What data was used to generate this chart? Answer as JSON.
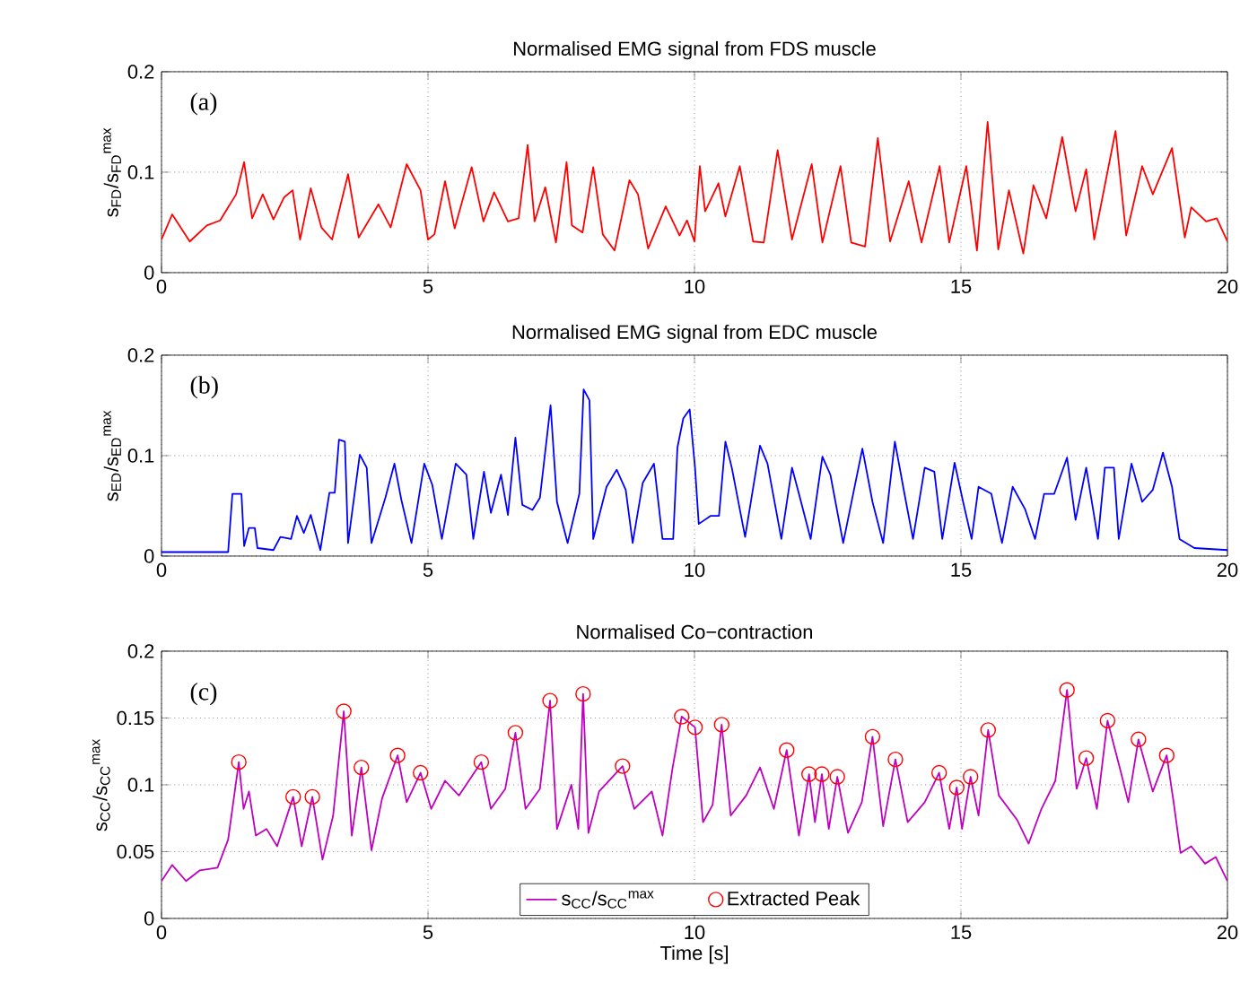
{
  "chart_data": [
    {
      "type": "line",
      "title": "Normalised EMG signal from FDS muscle",
      "ylabel": "s$_{FD}$/s$_{FD}$$^{max}$",
      "annotations": [
        "(a)"
      ],
      "x": [
        0,
        0.2,
        0.53,
        0.85,
        1.1,
        1.4,
        1.55,
        1.7,
        1.9,
        2.1,
        2.3,
        2.46,
        2.6,
        2.8,
        3.0,
        3.2,
        3.5,
        3.7,
        4.07,
        4.3,
        4.6,
        4.86,
        5.0,
        5.12,
        5.32,
        5.5,
        5.82,
        6.04,
        6.24,
        6.5,
        6.7,
        6.87,
        7.0,
        7.2,
        7.4,
        7.6,
        7.7,
        7.9,
        8.1,
        8.28,
        8.5,
        8.78,
        8.94,
        9.13,
        9.46,
        9.72,
        9.86,
        10.0,
        10.1,
        10.2,
        10.45,
        10.58,
        10.85,
        11.1,
        11.3,
        11.56,
        11.83,
        12.2,
        12.4,
        12.74,
        12.94,
        13.2,
        13.44,
        13.67,
        14.02,
        14.26,
        14.6,
        14.78,
        15.1,
        15.3,
        15.5,
        15.7,
        15.9,
        16.17,
        16.36,
        16.6,
        16.9,
        17.15,
        17.35,
        17.5,
        17.9,
        18.1,
        18.4,
        18.6,
        18.96,
        19.2,
        19.32,
        19.6,
        19.8,
        20
      ],
      "series": [
        {
          "color": "#ff0000",
          "values": [
            0.033,
            0.058,
            0.031,
            0.047,
            0.052,
            0.078,
            0.11,
            0.054,
            0.078,
            0.053,
            0.075,
            0.082,
            0.033,
            0.084,
            0.045,
            0.033,
            0.098,
            0.035,
            0.068,
            0.045,
            0.108,
            0.082,
            0.033,
            0.038,
            0.091,
            0.044,
            0.105,
            0.051,
            0.08,
            0.051,
            0.054,
            0.127,
            0.051,
            0.085,
            0.03,
            0.11,
            0.047,
            0.04,
            0.105,
            0.038,
            0.022,
            0.092,
            0.078,
            0.024,
            0.066,
            0.037,
            0.052,
            0.031,
            0.106,
            0.061,
            0.089,
            0.056,
            0.106,
            0.031,
            0.03,
            0.122,
            0.033,
            0.108,
            0.03,
            0.106,
            0.03,
            0.026,
            0.134,
            0.031,
            0.091,
            0.03,
            0.106,
            0.03,
            0.106,
            0.022,
            0.15,
            0.023,
            0.082,
            0.019,
            0.087,
            0.054,
            0.135,
            0.061,
            0.103,
            0.033,
            0.141,
            0.037,
            0.106,
            0.078,
            0.124,
            0.035,
            0.065,
            0.051,
            0.054,
            0.031
          ]
        }
      ],
      "xlim": [
        0,
        20
      ],
      "ylim": [
        0,
        0.2
      ],
      "xticks": [
        0,
        5,
        10,
        15,
        20
      ],
      "yticks": [
        0,
        0.1,
        0.2
      ],
      "grid": true
    },
    {
      "type": "line",
      "title": "Normalised EMG signal from EDC muscle",
      "ylabel": "s$_{ED}$/s$_{ED}$$^{max}$",
      "annotations": [
        "(b)"
      ],
      "x": [
        0,
        1.25,
        1.33,
        1.5,
        1.55,
        1.64,
        1.75,
        1.8,
        2.1,
        2.23,
        2.43,
        2.54,
        2.67,
        2.8,
        2.98,
        3.15,
        3.25,
        3.33,
        3.44,
        3.5,
        3.72,
        3.85,
        3.94,
        4.2,
        4.37,
        4.5,
        4.69,
        4.93,
        5.08,
        5.26,
        5.52,
        5.72,
        5.85,
        6.05,
        6.18,
        6.37,
        6.5,
        6.64,
        6.77,
        6.96,
        7.1,
        7.3,
        7.42,
        7.62,
        7.84,
        7.92,
        8.03,
        8.1,
        8.35,
        8.54,
        8.71,
        8.84,
        9.03,
        9.24,
        9.4,
        9.6,
        9.68,
        9.79,
        9.91,
        10.01,
        10.08,
        10.3,
        10.46,
        10.58,
        10.7,
        10.95,
        11.23,
        11.37,
        11.63,
        11.83,
        11.96,
        12.18,
        12.4,
        12.55,
        12.79,
        13.15,
        13.34,
        13.54,
        13.76,
        13.94,
        14.1,
        14.32,
        14.5,
        14.65,
        14.88,
        15.04,
        15.2,
        15.33,
        15.57,
        15.77,
        15.97,
        16.2,
        16.39,
        16.56,
        16.75,
        16.99,
        17.15,
        17.35,
        17.57,
        17.7,
        17.87,
        17.96,
        18.2,
        18.4,
        18.6,
        18.79,
        18.96,
        19.1,
        19.38,
        20
      ],
      "series": [
        {
          "color": "#0000ff",
          "values": [
            0.004,
            0.004,
            0.062,
            0.062,
            0.01,
            0.028,
            0.028,
            0.008,
            0.006,
            0.019,
            0.017,
            0.04,
            0.023,
            0.041,
            0.006,
            0.063,
            0.063,
            0.116,
            0.114,
            0.013,
            0.101,
            0.088,
            0.013,
            0.058,
            0.092,
            0.056,
            0.013,
            0.092,
            0.071,
            0.017,
            0.092,
            0.081,
            0.017,
            0.084,
            0.043,
            0.081,
            0.041,
            0.118,
            0.051,
            0.046,
            0.058,
            0.15,
            0.054,
            0.013,
            0.062,
            0.166,
            0.155,
            0.017,
            0.069,
            0.086,
            0.066,
            0.013,
            0.073,
            0.092,
            0.017,
            0.017,
            0.108,
            0.137,
            0.146,
            0.088,
            0.032,
            0.04,
            0.04,
            0.114,
            0.088,
            0.019,
            0.11,
            0.092,
            0.017,
            0.088,
            0.062,
            0.017,
            0.099,
            0.081,
            0.013,
            0.107,
            0.054,
            0.013,
            0.114,
            0.062,
            0.017,
            0.088,
            0.084,
            0.017,
            0.093,
            0.054,
            0.017,
            0.069,
            0.062,
            0.013,
            0.069,
            0.047,
            0.017,
            0.062,
            0.062,
            0.098,
            0.036,
            0.088,
            0.017,
            0.088,
            0.088,
            0.017,
            0.092,
            0.054,
            0.066,
            0.103,
            0.069,
            0.017,
            0.008,
            0.006
          ]
        }
      ],
      "xlim": [
        0,
        20
      ],
      "ylim": [
        0,
        0.2
      ],
      "xticks": [
        0,
        5,
        10,
        15,
        20
      ],
      "yticks": [
        0,
        0.1,
        0.2
      ],
      "grid": true
    },
    {
      "type": "line",
      "title": "Normalised Co−contraction",
      "xlabel": "Time [s]",
      "ylabel": "s$_{CC}$/s$_{CC}$$^{max}$",
      "annotations": [
        "(c)"
      ],
      "x": [
        0,
        0.2,
        0.46,
        0.72,
        1.05,
        1.25,
        1.45,
        1.54,
        1.64,
        1.77,
        1.97,
        2.17,
        2.47,
        2.63,
        2.83,
        3.02,
        3.22,
        3.42,
        3.57,
        3.75,
        3.94,
        4.14,
        4.43,
        4.6,
        4.86,
        5.06,
        5.32,
        5.58,
        6.0,
        6.18,
        6.45,
        6.64,
        6.83,
        7.1,
        7.29,
        7.42,
        7.69,
        7.82,
        7.91,
        8.01,
        8.21,
        8.65,
        8.87,
        9.2,
        9.4,
        9.59,
        9.76,
        10.01,
        10.16,
        10.34,
        10.51,
        10.68,
        10.97,
        11.23,
        11.49,
        11.73,
        11.96,
        12.15,
        12.26,
        12.39,
        12.52,
        12.68,
        12.88,
        13.14,
        13.34,
        13.54,
        13.77,
        14.0,
        14.32,
        14.59,
        14.78,
        14.92,
        15.02,
        15.18,
        15.33,
        15.51,
        15.71,
        16.05,
        16.27,
        16.51,
        16.77,
        16.99,
        17.17,
        17.35,
        17.55,
        17.75,
        18.01,
        18.14,
        18.33,
        18.6,
        18.86,
        18.99,
        19.12,
        19.32,
        19.58,
        19.78,
        20
      ],
      "series": [
        {
          "name": "s$_{CC}$/s$_{CC}$$^{max}$",
          "color": "#bf00bf",
          "values": [
            0.028,
            0.04,
            0.028,
            0.036,
            0.038,
            0.059,
            0.117,
            0.082,
            0.095,
            0.062,
            0.067,
            0.054,
            0.091,
            0.054,
            0.091,
            0.044,
            0.077,
            0.155,
            0.062,
            0.113,
            0.051,
            0.09,
            0.122,
            0.087,
            0.109,
            0.082,
            0.103,
            0.092,
            0.117,
            0.082,
            0.097,
            0.139,
            0.082,
            0.097,
            0.163,
            0.067,
            0.1,
            0.067,
            0.168,
            0.064,
            0.095,
            0.114,
            0.082,
            0.095,
            0.062,
            0.113,
            0.151,
            0.143,
            0.072,
            0.085,
            0.145,
            0.077,
            0.092,
            0.113,
            0.082,
            0.126,
            0.062,
            0.108,
            0.072,
            0.108,
            0.067,
            0.106,
            0.064,
            0.087,
            0.136,
            0.069,
            0.119,
            0.072,
            0.087,
            0.109,
            0.067,
            0.098,
            0.067,
            0.106,
            0.077,
            0.141,
            0.092,
            0.074,
            0.056,
            0.082,
            0.103,
            0.171,
            0.097,
            0.12,
            0.082,
            0.148,
            0.108,
            0.087,
            0.134,
            0.095,
            0.122,
            0.087,
            0.049,
            0.054,
            0.041,
            0.046,
            0.028
          ]
        },
        {
          "name": "Extracted Peak",
          "type": "scatter",
          "marker": "circle",
          "color": "#ff0000",
          "x": [
            1.45,
            2.47,
            2.83,
            3.42,
            3.75,
            4.43,
            4.86,
            6.0,
            6.64,
            7.29,
            7.91,
            8.65,
            9.76,
            10.01,
            10.51,
            11.73,
            12.15,
            12.39,
            12.68,
            13.34,
            13.77,
            14.59,
            14.92,
            15.18,
            15.51,
            16.99,
            17.35,
            17.75,
            18.33,
            18.86
          ],
          "values": [
            0.117,
            0.091,
            0.091,
            0.155,
            0.113,
            0.122,
            0.109,
            0.117,
            0.139,
            0.163,
            0.168,
            0.114,
            0.151,
            0.143,
            0.145,
            0.126,
            0.108,
            0.108,
            0.106,
            0.136,
            0.119,
            0.109,
            0.098,
            0.106,
            0.141,
            0.171,
            0.12,
            0.148,
            0.134,
            0.122
          ]
        }
      ],
      "xlim": [
        0,
        20
      ],
      "ylim": [
        0,
        0.2
      ],
      "xticks": [
        0,
        5,
        10,
        15,
        20
      ],
      "yticks": [
        0,
        0.05,
        0.1,
        0.15,
        0.2
      ],
      "grid": true,
      "legend": "bottom"
    }
  ]
}
